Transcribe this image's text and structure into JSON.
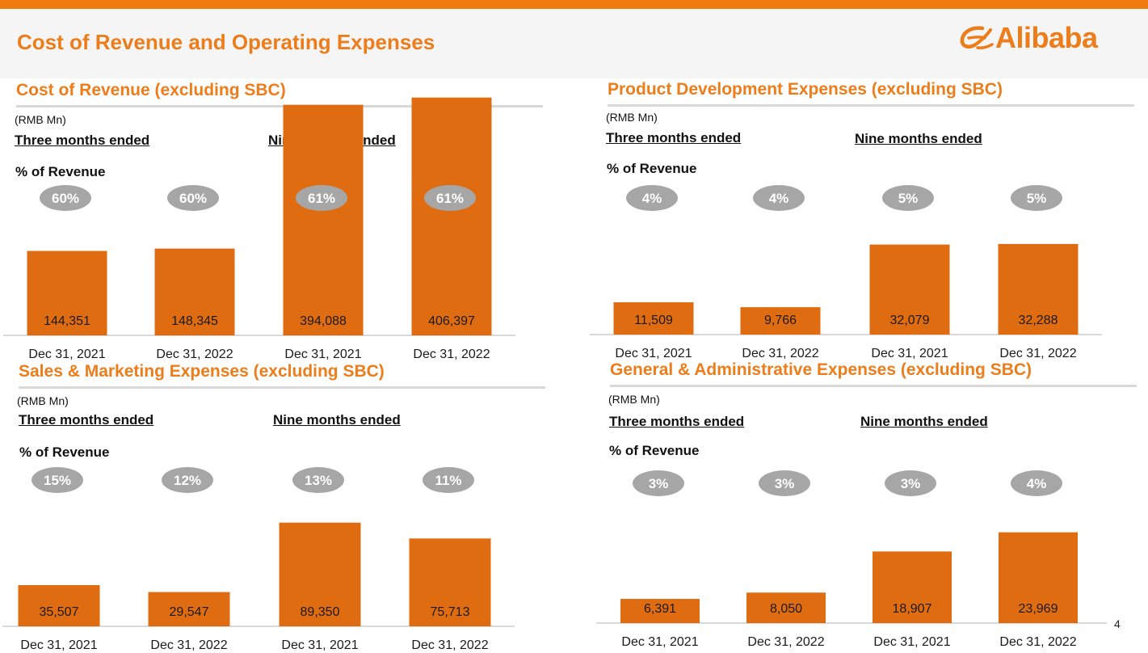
{
  "page": {
    "title": "Cost of Revenue and Operating Expenses",
    "logo_text": "Alibaba",
    "page_number": "4"
  },
  "colors": {
    "accent": "#ed7d1a",
    "topbar": "#f07c10",
    "bar": "#e06c12",
    "pill": "#a6a6a6",
    "axis": "#d9d9d9"
  },
  "chart_data": [
    {
      "type": "bar",
      "title": "Cost of Revenue (excluding SBC)",
      "unit": "(RMB Mn)",
      "group_labels": [
        "Three months ended",
        "Nine months ended"
      ],
      "pct_title": "% of Revenue",
      "categories": [
        "Dec 31, 2021",
        "Dec 31, 2022",
        "Dec 31, 2021",
        "Dec 31, 2022"
      ],
      "values": [
        144351,
        148345,
        394088,
        406397
      ],
      "value_labels": [
        "144,351",
        "148,345",
        "394,088",
        "406,397"
      ],
      "percent_of_revenue": [
        "60%",
        "60%",
        "61%",
        "61%"
      ],
      "ylim": [
        0,
        1450000
      ]
    },
    {
      "type": "bar",
      "title": "Product Development Expenses (excluding SBC)",
      "unit": "(RMB Mn)",
      "group_labels": [
        "Three months ended",
        "Nine months ended"
      ],
      "pct_title": "% of Revenue",
      "categories": [
        "Dec 31, 2021",
        "Dec 31, 2022",
        "Dec 31, 2021",
        "Dec 31, 2022"
      ],
      "values": [
        11509,
        9766,
        32079,
        32288
      ],
      "value_labels": [
        "11,509",
        "9,766",
        "32,079",
        "32,288"
      ],
      "percent_of_revenue": [
        "4%",
        "4%",
        "5%",
        "5%"
      ],
      "ylim": [
        0,
        36000
      ]
    },
    {
      "type": "bar",
      "title": "Sales & Marketing Expenses (excluding SBC)",
      "unit": "(RMB Mn)",
      "group_labels": [
        "Three months ended",
        "Nine months ended"
      ],
      "pct_title": "% of Revenue",
      "categories": [
        "Dec 31, 2021",
        "Dec 31, 2022",
        "Dec 31, 2021",
        "Dec 31, 2022"
      ],
      "values": [
        35507,
        29547,
        89350,
        75713
      ],
      "value_labels": [
        "35,507",
        "29,547",
        "89,350",
        "75,713"
      ],
      "percent_of_revenue": [
        "15%",
        "12%",
        "13%",
        "11%"
      ],
      "ylim": [
        0,
        117000
      ]
    },
    {
      "type": "bar",
      "title": "General & Administrative Expenses (excluding SBC)",
      "unit": "(RMB Mn)",
      "group_labels": [
        "Three months ended",
        "Nine months ended"
      ],
      "pct_title": "% of Revenue",
      "categories": [
        "Dec 31, 2021",
        "Dec 31, 2022",
        "Dec 31, 2021",
        "Dec 31, 2022"
      ],
      "values": [
        6391,
        8050,
        18907,
        23969
      ],
      "value_labels": [
        "6,391",
        "8,050",
        "18,907",
        "23,969"
      ],
      "percent_of_revenue": [
        "3%",
        "3%",
        "3%",
        "4%"
      ],
      "ylim": [
        0,
        32000
      ]
    }
  ]
}
